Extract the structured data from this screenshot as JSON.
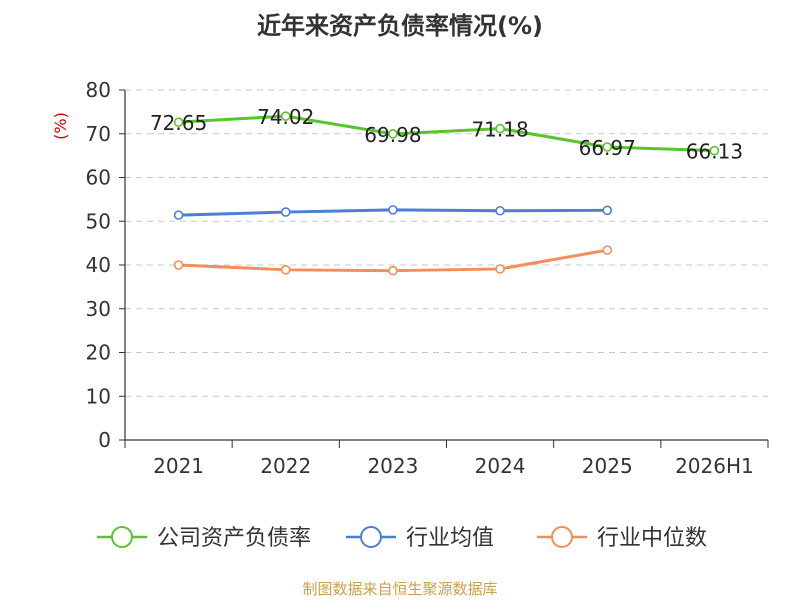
{
  "chart_data": {
    "type": "line",
    "title": "近年来资产负债率情况(%)",
    "ylabel": "(%)",
    "categories": [
      "2021",
      "2022",
      "2023",
      "2024",
      "2025",
      "2026H1"
    ],
    "ylim": [
      0,
      80
    ],
    "yticks": [
      0,
      10,
      20,
      30,
      40,
      50,
      60,
      70,
      80
    ],
    "grid": true,
    "legend_position": "bottom",
    "series": [
      {
        "name": "公司资产负债率",
        "color": "#5ac42f",
        "values": [
          72.65,
          74.02,
          69.98,
          71.18,
          66.97,
          66.13
        ],
        "labels": [
          "72.65",
          "74.02",
          "69.98",
          "71.18",
          "66.97",
          "66.13"
        ]
      },
      {
        "name": "行业均值",
        "color": "#4a7fd6",
        "values": [
          51.4,
          52.1,
          52.6,
          52.4,
          52.5,
          null
        ]
      },
      {
        "name": "行业中位数",
        "color": "#f28e5b",
        "values": [
          40.0,
          38.9,
          38.7,
          39.1,
          43.4,
          null
        ]
      }
    ],
    "source": "制图数据来自恒生聚源数据库"
  }
}
